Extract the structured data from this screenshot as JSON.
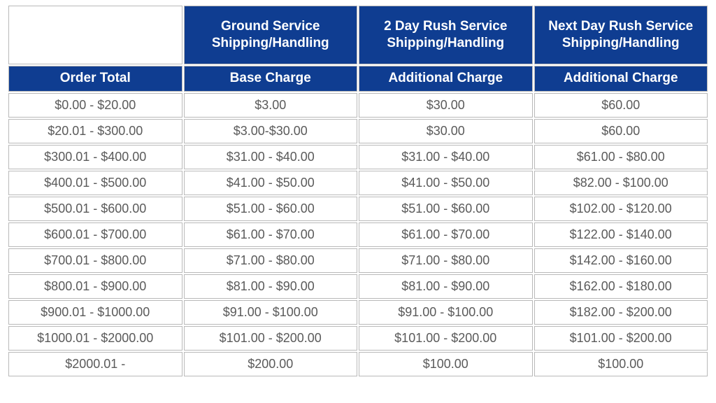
{
  "colors": {
    "header_bg": "#0f3d91",
    "header_text": "#ffffff",
    "cell_bg": "#ffffff",
    "cell_text": "#5a5a5a",
    "border": "#b9b9b9",
    "page_bg": "#ffffff"
  },
  "typography": {
    "header_fontsize_pt": 14,
    "cell_fontsize_pt": 13,
    "header_weight": "bold",
    "font_family": "Arial"
  },
  "table": {
    "type": "table",
    "top_headers": [
      "",
      "Ground Service Shipping/Handling",
      "2 Day Rush Service Shipping/Handling",
      "Next Day Rush Service Shipping/Handling"
    ],
    "sub_headers": [
      "Order Total",
      "Base Charge",
      "Additional Charge",
      "Additional Charge"
    ],
    "column_widths_pct": [
      25,
      25,
      25,
      25
    ],
    "column_align": [
      "center",
      "center",
      "center",
      "center"
    ],
    "rows": [
      [
        "$0.00 - $20.00",
        "$3.00",
        "$30.00",
        "$60.00"
      ],
      [
        "$20.01 - $300.00",
        "$3.00-$30.00",
        "$30.00",
        "$60.00"
      ],
      [
        "$300.01 - $400.00",
        "$31.00 - $40.00",
        "$31.00 - $40.00",
        "$61.00 - $80.00"
      ],
      [
        "$400.01 - $500.00",
        "$41.00 - $50.00",
        "$41.00 - $50.00",
        "$82.00 - $100.00"
      ],
      [
        "$500.01 - $600.00",
        "$51.00 - $60.00",
        "$51.00 - $60.00",
        "$102.00 - $120.00"
      ],
      [
        "$600.01 - $700.00",
        "$61.00 - $70.00",
        "$61.00 - $70.00",
        "$122.00 - $140.00"
      ],
      [
        "$700.01 - $800.00",
        "$71.00 - $80.00",
        "$71.00 - $80.00",
        "$142.00 - $160.00"
      ],
      [
        "$800.01 - $900.00",
        "$81.00 - $90.00",
        "$81.00 - $90.00",
        "$162.00 - $180.00"
      ],
      [
        "$900.01 - $1000.00",
        "$91.00 - $100.00",
        "$91.00 - $100.00",
        "$182.00 - $200.00"
      ],
      [
        "$1000.01 - $2000.00",
        "$101.00 - $200.00",
        "$101.00 - $200.00",
        "$101.00 - $200.00"
      ],
      [
        "$2000.01 -",
        "$200.00",
        "$100.00",
        "$100.00"
      ]
    ]
  }
}
